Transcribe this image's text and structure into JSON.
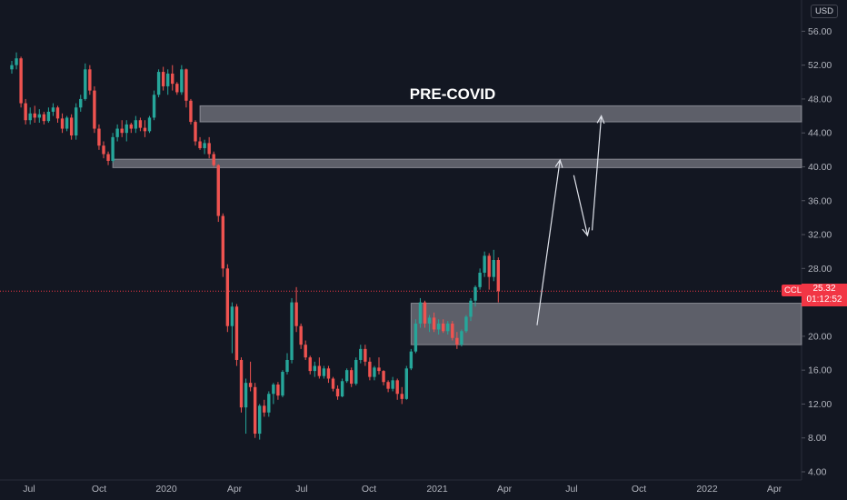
{
  "header": {
    "currency": "USD"
  },
  "annotation": {
    "label": "PRE-COVID"
  },
  "price_tag": {
    "symbol": "CCL",
    "price": "25.32",
    "countdown": "01:12:52"
  },
  "colors": {
    "up": "#26a69a",
    "down": "#ef5350",
    "background": "#131722",
    "zone": "#b7b8c0",
    "last_price": "#f23645"
  },
  "chart_data": {
    "type": "candlestick",
    "y_axis": {
      "range": [
        3,
        58
      ],
      "ticks": [
        "4.00",
        "8.00",
        "12.00",
        "16.00",
        "20.00",
        "24.00",
        "28.00",
        "32.00",
        "36.00",
        "40.00",
        "44.00",
        "48.00",
        "52.00",
        "56.00"
      ]
    },
    "x_axis": {
      "ticks": [
        "Jul",
        "Oct",
        "2020",
        "Apr",
        "Jul",
        "Oct",
        "2021",
        "Apr",
        "Jul",
        "Oct",
        "2022",
        "Apr"
      ]
    },
    "last_price": 25.32,
    "ohlc_weekly": [
      [
        51.5,
        52.5,
        51,
        52
      ],
      [
        52,
        53.5,
        51.5,
        52.8
      ],
      [
        52.8,
        53,
        47,
        47.5
      ],
      [
        47.5,
        48,
        45,
        45.5
      ],
      [
        45.5,
        47,
        45,
        46.3
      ],
      [
        46.3,
        47.2,
        45.2,
        45.8
      ],
      [
        45.8,
        46.8,
        45.2,
        46.2
      ],
      [
        46.2,
        46.5,
        45,
        45.4
      ],
      [
        45.4,
        47,
        45.2,
        46.5
      ],
      [
        46.5,
        47.5,
        46,
        47
      ],
      [
        47,
        47.2,
        45.2,
        45.7
      ],
      [
        45.7,
        46.3,
        44,
        44.5
      ],
      [
        44.5,
        46,
        44.2,
        45.8
      ],
      [
        45.8,
        46.2,
        43.2,
        43.7
      ],
      [
        43.7,
        47.5,
        43.2,
        47
      ],
      [
        47,
        48.5,
        46.5,
        48
      ],
      [
        48,
        52.2,
        47.8,
        51.5
      ],
      [
        51.5,
        52,
        48.5,
        49
      ],
      [
        49,
        49.5,
        44,
        44.5
      ],
      [
        44.5,
        45,
        42,
        42.5
      ],
      [
        42.5,
        43,
        41,
        41.5
      ],
      [
        41.5,
        41.8,
        40.2,
        40.7
      ],
      [
        40.7,
        44,
        40.5,
        43.5
      ],
      [
        43.5,
        45,
        43,
        44.5
      ],
      [
        44.5,
        45.5,
        43.5,
        44
      ],
      [
        44,
        45.5,
        43,
        45
      ],
      [
        45,
        45.2,
        44,
        44.5
      ],
      [
        44.5,
        46,
        44,
        45.5
      ],
      [
        45.5,
        45.8,
        44.2,
        44.6
      ],
      [
        44.6,
        45.5,
        43.5,
        44.2
      ],
      [
        44.2,
        46,
        44,
        45.8
      ],
      [
        45.8,
        49,
        45.5,
        48.5
      ],
      [
        48.5,
        51.5,
        48.2,
        51.2
      ],
      [
        51.2,
        51.8,
        49,
        49.5
      ],
      [
        49.5,
        51.5,
        48.5,
        51
      ],
      [
        51,
        52,
        49,
        49.8
      ],
      [
        49.8,
        50,
        48.5,
        48.8
      ],
      [
        48.8,
        52,
        48.5,
        51.5
      ],
      [
        51.5,
        51.6,
        47,
        47.8
      ],
      [
        47.8,
        48,
        45,
        45.3
      ],
      [
        45.3,
        45.5,
        42.5,
        43
      ],
      [
        43,
        43.5,
        42,
        42.2
      ],
      [
        42.2,
        43.2,
        41.5,
        42.8
      ],
      [
        42.8,
        43.5,
        41,
        41.5
      ],
      [
        41.5,
        41.8,
        40,
        40.2
      ],
      [
        40.2,
        40.3,
        33.5,
        34.2
      ],
      [
        34.2,
        34.5,
        27,
        28
      ],
      [
        28,
        28.5,
        20.5,
        21.2
      ],
      [
        21.2,
        24,
        18,
        23.5
      ],
      [
        23.5,
        23.8,
        16.5,
        17.2
      ],
      [
        17.2,
        17.5,
        11,
        11.6
      ],
      [
        11.6,
        15,
        8.5,
        14.5
      ],
      [
        14.5,
        17,
        13.5,
        14
      ],
      [
        14,
        14.5,
        8,
        8.5
      ],
      [
        8.5,
        12,
        7.8,
        11.8
      ],
      [
        11.8,
        12.5,
        10.5,
        11
      ],
      [
        11,
        13.5,
        10.5,
        13.2
      ],
      [
        13.2,
        14.5,
        12,
        14.3
      ],
      [
        14.3,
        14.6,
        12.5,
        13
      ],
      [
        13,
        16,
        12.8,
        15.8
      ],
      [
        15.8,
        18,
        15.5,
        17.2
      ],
      [
        17.2,
        24.5,
        16.8,
        24
      ],
      [
        24,
        25.8,
        20.5,
        21.2
      ],
      [
        21.2,
        21.5,
        18.5,
        19
      ],
      [
        19,
        19.5,
        17.2,
        17.5
      ],
      [
        17.5,
        17.7,
        15.5,
        15.9
      ],
      [
        15.9,
        17,
        15.2,
        16.5
      ],
      [
        16.5,
        17.5,
        15,
        15.3
      ],
      [
        15.3,
        16.5,
        15,
        16.2
      ],
      [
        16.2,
        16.5,
        14.5,
        15
      ],
      [
        15,
        15.2,
        13.5,
        13.8
      ],
      [
        13.8,
        14.2,
        12.5,
        12.9
      ],
      [
        12.9,
        15,
        12.8,
        14.7
      ],
      [
        14.7,
        16.2,
        14.5,
        16
      ],
      [
        16,
        16.3,
        14,
        14.4
      ],
      [
        14.4,
        17.5,
        14.2,
        17.2
      ],
      [
        17.2,
        19,
        16.8,
        18.5
      ],
      [
        18.5,
        19,
        16.5,
        17
      ],
      [
        17,
        17.5,
        14.8,
        15.2
      ],
      [
        15.2,
        16.5,
        14.8,
        16.3
      ],
      [
        16.3,
        17.5,
        15.5,
        15.9
      ],
      [
        15.9,
        16,
        14.2,
        14.6
      ],
      [
        14.6,
        14.8,
        13.4,
        13.8
      ],
      [
        13.8,
        15.2,
        13.5,
        14.8
      ],
      [
        14.8,
        15,
        12.5,
        13.2
      ],
      [
        13.2,
        14,
        12,
        12.6
      ],
      [
        12.6,
        16.5,
        12.5,
        16.2
      ],
      [
        16.2,
        18.5,
        16,
        18.2
      ],
      [
        18.2,
        22,
        18,
        21.5
      ],
      [
        21.5,
        24.5,
        21,
        24
      ],
      [
        24,
        24.2,
        21,
        21.5
      ],
      [
        21.5,
        22.5,
        20.5,
        22.2
      ],
      [
        22.2,
        22.8,
        20.5,
        20.8
      ],
      [
        20.8,
        22,
        20.2,
        21.5
      ],
      [
        21.5,
        22,
        20.4,
        20.6
      ],
      [
        20.6,
        21.8,
        20.2,
        21.5
      ],
      [
        21.5,
        21.8,
        19.5,
        19.8
      ],
      [
        19.8,
        20.5,
        18.5,
        19
      ],
      [
        19,
        20.8,
        18.8,
        20.6
      ],
      [
        20.6,
        22.5,
        20.4,
        22.3
      ],
      [
        22.3,
        24.5,
        21.8,
        24.2
      ],
      [
        24.2,
        26,
        23.5,
        25.8
      ],
      [
        25.8,
        28,
        25.5,
        27.5
      ],
      [
        27.5,
        30,
        27,
        29.5
      ],
      [
        29.5,
        29.8,
        25.5,
        27
      ],
      [
        27,
        30.2,
        26.5,
        29
      ],
      [
        29,
        29.3,
        24,
        25.32
      ]
    ],
    "zones": [
      {
        "price_low": 45.3,
        "price_high": 47.2,
        "start_index": 41
      },
      {
        "price_low": 39.9,
        "price_high": 40.9,
        "start_index": 22
      },
      {
        "price_low": 19,
        "price_high": 23.9,
        "start_index": 87
      }
    ],
    "projection_path": [
      [
        99,
        21.3
      ],
      [
        104,
        40.8
      ],
      [
        107,
        39
      ],
      [
        110,
        31.9
      ],
      [
        111,
        32.5
      ],
      [
        113,
        46
      ]
    ]
  }
}
